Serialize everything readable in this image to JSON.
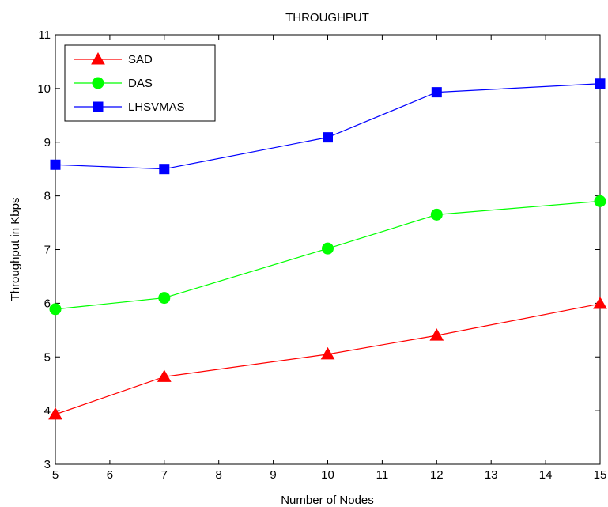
{
  "chart_data": {
    "type": "line",
    "title": "THROUGHPUT",
    "xlabel": "Number of Nodes",
    "ylabel": "Throughput in Kbps",
    "xlim": [
      5,
      15
    ],
    "ylim": [
      3,
      11
    ],
    "xticks": [
      5,
      6,
      7,
      8,
      9,
      10,
      11,
      12,
      13,
      14,
      15
    ],
    "yticks": [
      3,
      4,
      5,
      6,
      7,
      8,
      9,
      10,
      11
    ],
    "x": [
      5,
      7,
      10,
      12,
      15
    ],
    "grid": false,
    "legend_position": "top-left",
    "series": [
      {
        "name": "SAD",
        "color": "#ff0000",
        "marker": "triangle",
        "values": [
          3.93,
          4.63,
          5.05,
          5.4,
          5.99
        ]
      },
      {
        "name": "DAS",
        "color": "#00ff00",
        "marker": "circle",
        "values": [
          5.89,
          6.1,
          7.02,
          7.65,
          7.9
        ]
      },
      {
        "name": "LHSVMAS",
        "color": "#0000ff",
        "marker": "square",
        "values": [
          8.58,
          8.5,
          9.09,
          9.93,
          10.09
        ]
      }
    ]
  }
}
